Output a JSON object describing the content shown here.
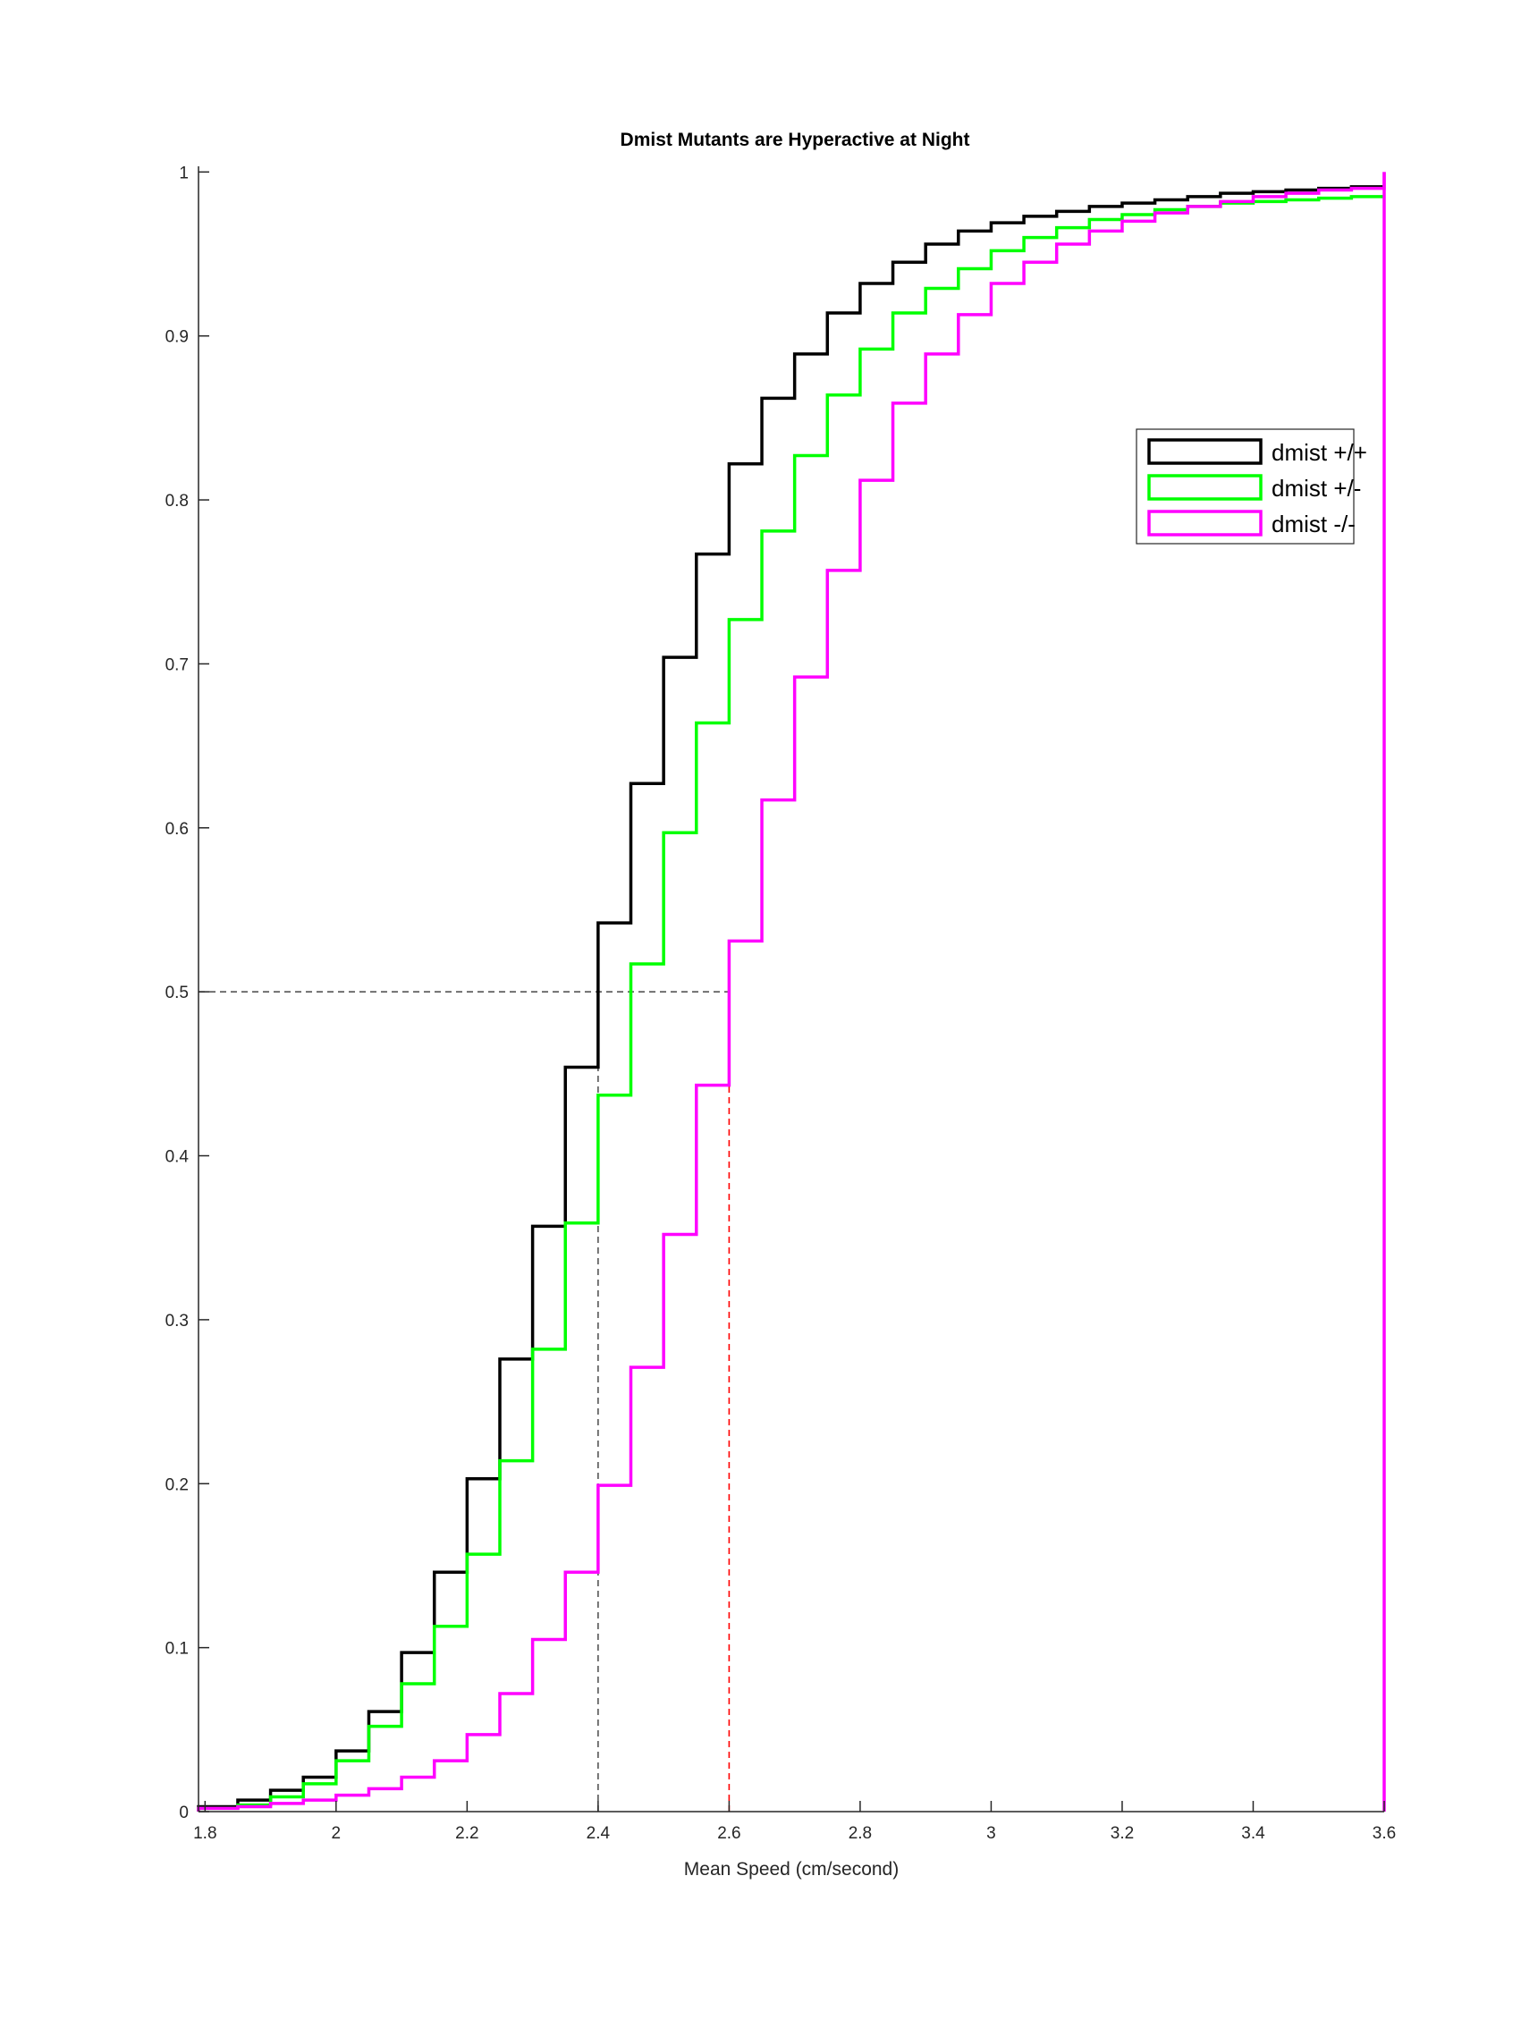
{
  "chart_data": {
    "type": "line",
    "subtype": "cumulative-step",
    "title": "Dmist Mutants are Hyperactive at Night",
    "xlabel": "Mean Speed (cm/second)",
    "ylabel": "",
    "xlim": [
      1.79,
      3.6
    ],
    "ylim": [
      0,
      1.01
    ],
    "x_ticks": [
      "1.8",
      "2",
      "2.2",
      "2.4",
      "2.6",
      "2.8",
      "3",
      "3.2",
      "3.4",
      "3.6"
    ],
    "x_tick_values": [
      1.8,
      2.0,
      2.2,
      2.4,
      2.6,
      2.8,
      3.0,
      3.2,
      3.4,
      3.6
    ],
    "y_ticks": [
      "0",
      "0.1",
      "0.2",
      "0.3",
      "0.4",
      "0.5",
      "0.6",
      "0.7",
      "0.8",
      "0.9",
      "1"
    ],
    "y_tick_values": [
      0,
      0.1,
      0.2,
      0.3,
      0.4,
      0.5,
      0.6,
      0.7,
      0.8,
      0.9,
      1.0
    ],
    "grid": false,
    "legend_position": "top-right",
    "series": [
      {
        "name": "dmist +/+",
        "color": "#000000",
        "x": [
          1.79,
          1.85,
          1.9,
          1.95,
          2.0,
          2.05,
          2.1,
          2.15,
          2.2,
          2.25,
          2.3,
          2.35,
          2.4,
          2.45,
          2.5,
          2.55,
          2.6,
          2.65,
          2.7,
          2.75,
          2.8,
          2.85,
          2.9,
          2.95,
          3.0,
          3.05,
          3.1,
          3.15,
          3.2,
          3.25,
          3.3,
          3.35,
          3.4,
          3.45,
          3.5,
          3.55,
          3.6
        ],
        "y": [
          0.003,
          0.007,
          0.013,
          0.021,
          0.037,
          0.061,
          0.097,
          0.146,
          0.203,
          0.276,
          0.357,
          0.454,
          0.542,
          0.627,
          0.704,
          0.767,
          0.822,
          0.862,
          0.889,
          0.914,
          0.932,
          0.945,
          0.956,
          0.964,
          0.969,
          0.973,
          0.976,
          0.979,
          0.981,
          0.983,
          0.985,
          0.987,
          0.988,
          0.989,
          0.99,
          0.991,
          0.991
        ]
      },
      {
        "name": "dmist +/-",
        "color": "#00ff00",
        "x": [
          1.79,
          1.85,
          1.9,
          1.95,
          2.0,
          2.05,
          2.1,
          2.15,
          2.2,
          2.25,
          2.3,
          2.35,
          2.4,
          2.45,
          2.5,
          2.55,
          2.6,
          2.65,
          2.7,
          2.75,
          2.8,
          2.85,
          2.9,
          2.95,
          3.0,
          3.05,
          3.1,
          3.15,
          3.2,
          3.25,
          3.3,
          3.35,
          3.4,
          3.45,
          3.5,
          3.55,
          3.6
        ],
        "y": [
          0.002,
          0.004,
          0.009,
          0.017,
          0.031,
          0.052,
          0.078,
          0.113,
          0.157,
          0.214,
          0.282,
          0.359,
          0.437,
          0.517,
          0.597,
          0.664,
          0.727,
          0.781,
          0.827,
          0.864,
          0.892,
          0.914,
          0.929,
          0.941,
          0.952,
          0.96,
          0.966,
          0.971,
          0.974,
          0.977,
          0.979,
          0.981,
          0.982,
          0.983,
          0.984,
          0.985,
          0.985
        ]
      },
      {
        "name": "dmist -/-",
        "color": "#ff00ff",
        "x": [
          1.79,
          1.85,
          1.9,
          1.95,
          2.0,
          2.05,
          2.1,
          2.15,
          2.2,
          2.25,
          2.3,
          2.35,
          2.4,
          2.45,
          2.5,
          2.55,
          2.6,
          2.65,
          2.7,
          2.75,
          2.8,
          2.85,
          2.9,
          2.95,
          3.0,
          3.05,
          3.1,
          3.15,
          3.2,
          3.25,
          3.3,
          3.35,
          3.4,
          3.45,
          3.5,
          3.55,
          3.6
        ],
        "y": [
          0.002,
          0.003,
          0.005,
          0.007,
          0.01,
          0.014,
          0.021,
          0.031,
          0.047,
          0.072,
          0.105,
          0.146,
          0.199,
          0.271,
          0.352,
          0.443,
          0.531,
          0.617,
          0.692,
          0.757,
          0.812,
          0.859,
          0.889,
          0.913,
          0.932,
          0.945,
          0.956,
          0.964,
          0.97,
          0.975,
          0.979,
          0.982,
          0.985,
          0.987,
          0.989,
          0.99,
          1.0
        ]
      }
    ],
    "reference_lines": [
      {
        "kind": "horizontal",
        "y": 0.5,
        "x_end": 2.6,
        "color": "#555555",
        "style": "dashed"
      },
      {
        "kind": "vertical",
        "x": 2.4,
        "y_end": 0.5,
        "color": "#555555",
        "style": "dashed"
      },
      {
        "kind": "vertical",
        "x": 2.6,
        "y_end": 0.5,
        "color": "#ff0000",
        "style": "dashed"
      }
    ]
  }
}
